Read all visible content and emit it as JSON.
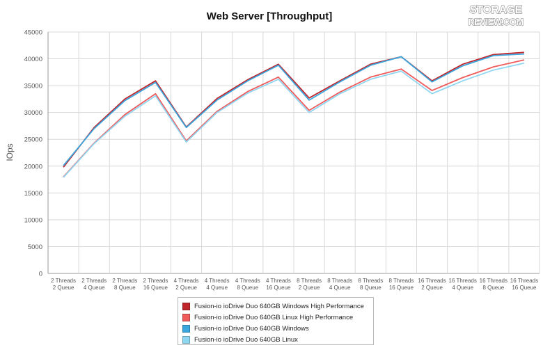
{
  "logo": {
    "line1": "STORAGE",
    "line2": "REVIEW.COM"
  },
  "chart_data": {
    "type": "line",
    "title": "Web Server [Throughput]",
    "ylabel": "IOps",
    "xlabel": "",
    "ylim": [
      0,
      45000
    ],
    "ytick_step": 5000,
    "grid": true,
    "legend_position": "bottom",
    "categories": [
      [
        "2 Threads",
        "2 Queue"
      ],
      [
        "2 Threads",
        "4 Queue"
      ],
      [
        "2 Threads",
        "8 Queue"
      ],
      [
        "2 Threads",
        "16 Queue"
      ],
      [
        "4 Threads",
        "2 Queue"
      ],
      [
        "4 Threads",
        "4 Queue"
      ],
      [
        "4 Threads",
        "8 Queue"
      ],
      [
        "4 Threads",
        "16 Queue"
      ],
      [
        "8 Threads",
        "2 Queue"
      ],
      [
        "8 Threads",
        "4 Queue"
      ],
      [
        "8 Threads",
        "8 Queue"
      ],
      [
        "8 Threads",
        "16 Queue"
      ],
      [
        "16 Threads",
        "2 Queue"
      ],
      [
        "16 Threads",
        "4 Queue"
      ],
      [
        "16 Threads",
        "8 Queue"
      ],
      [
        "16 Threads",
        "16 Queue"
      ]
    ],
    "series": [
      {
        "name": "Fusion-io ioDrive Duo 640GB Windows High Performance",
        "color": "#c0252b",
        "values": [
          19800,
          27200,
          32500,
          35900,
          27300,
          32600,
          36100,
          39000,
          32700,
          35900,
          39000,
          40400,
          35900,
          39000,
          40800,
          41200
        ]
      },
      {
        "name": "Fusion-io ioDrive Duo 640GB Linux High Performance",
        "color": "#ef5a5a",
        "values": [
          18000,
          24300,
          29600,
          33500,
          24700,
          30200,
          33900,
          36600,
          30400,
          33800,
          36600,
          38100,
          34100,
          36500,
          38500,
          39800
        ]
      },
      {
        "name": "Fusion-io ioDrive Duo 640GB Windows",
        "color": "#3aa6de",
        "values": [
          20100,
          27000,
          32200,
          35600,
          27200,
          32300,
          35900,
          38800,
          32300,
          35700,
          38800,
          40400,
          35700,
          38700,
          40600,
          40900
        ]
      },
      {
        "name": "Fusion-io ioDrive Duo 640GB Linux",
        "color": "#8fd6f2",
        "values": [
          17900,
          24200,
          29300,
          33100,
          24500,
          30000,
          33600,
          36200,
          30000,
          33500,
          36200,
          37700,
          33500,
          35900,
          37900,
          39200
        ]
      }
    ]
  }
}
